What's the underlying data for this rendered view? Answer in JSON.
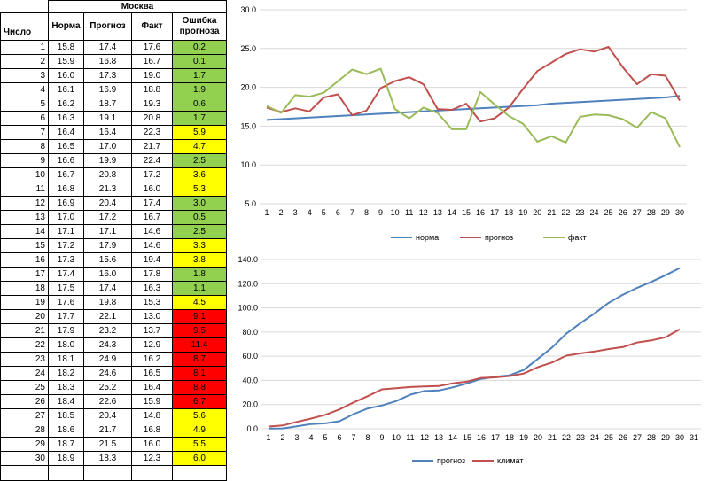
{
  "table": {
    "city": "Москва",
    "headers": {
      "day": "Число",
      "norm": "Норма",
      "forecast": "Прогноз",
      "fact": "Факт",
      "error": "Ошибка прогноза"
    },
    "colors": {
      "green": "#92d050",
      "yellow": "#ffff00",
      "red": "#ff0000"
    },
    "rows": [
      {
        "d": "1",
        "n": "15.8",
        "p": "17.4",
        "f": "17.6",
        "e": "0.2",
        "c": "green"
      },
      {
        "d": "2",
        "n": "15.9",
        "p": "16.8",
        "f": "16.7",
        "e": "0.1",
        "c": "green"
      },
      {
        "d": "3",
        "n": "16.0",
        "p": "17.3",
        "f": "19.0",
        "e": "1.7",
        "c": "green"
      },
      {
        "d": "4",
        "n": "16.1",
        "p": "16.9",
        "f": "18.8",
        "e": "1.9",
        "c": "green"
      },
      {
        "d": "5",
        "n": "16.2",
        "p": "18.7",
        "f": "19.3",
        "e": "0.6",
        "c": "green"
      },
      {
        "d": "6",
        "n": "16.3",
        "p": "19.1",
        "f": "20.8",
        "e": "1.7",
        "c": "green"
      },
      {
        "d": "7",
        "n": "16.4",
        "p": "16.4",
        "f": "22.3",
        "e": "5.9",
        "c": "yellow"
      },
      {
        "d": "8",
        "n": "16.5",
        "p": "17.0",
        "f": "21.7",
        "e": "4.7",
        "c": "yellow"
      },
      {
        "d": "9",
        "n": "16.6",
        "p": "19.9",
        "f": "22.4",
        "e": "2.5",
        "c": "green"
      },
      {
        "d": "10",
        "n": "16.7",
        "p": "20.8",
        "f": "17.2",
        "e": "3.6",
        "c": "yellow"
      },
      {
        "d": "11",
        "n": "16.8",
        "p": "21.3",
        "f": "16.0",
        "e": "5.3",
        "c": "yellow"
      },
      {
        "d": "12",
        "n": "16.9",
        "p": "20.4",
        "f": "17.4",
        "e": "3.0",
        "c": "green"
      },
      {
        "d": "13",
        "n": "17.0",
        "p": "17.2",
        "f": "16.7",
        "e": "0.5",
        "c": "green"
      },
      {
        "d": "14",
        "n": "17.1",
        "p": "17.1",
        "f": "14.6",
        "e": "2.5",
        "c": "green"
      },
      {
        "d": "15",
        "n": "17.2",
        "p": "17.9",
        "f": "14.6",
        "e": "3.3",
        "c": "yellow"
      },
      {
        "d": "16",
        "n": "17.3",
        "p": "15.6",
        "f": "19.4",
        "e": "3.8",
        "c": "yellow"
      },
      {
        "d": "17",
        "n": "17.4",
        "p": "16.0",
        "f": "17.8",
        "e": "1.8",
        "c": "green"
      },
      {
        "d": "18",
        "n": "17.5",
        "p": "17.4",
        "f": "16.3",
        "e": "1.1",
        "c": "green"
      },
      {
        "d": "19",
        "n": "17.6",
        "p": "19.8",
        "f": "15.3",
        "e": "4.5",
        "c": "yellow"
      },
      {
        "d": "20",
        "n": "17.7",
        "p": "22.1",
        "f": "13.0",
        "e": "9.1",
        "c": "red"
      },
      {
        "d": "21",
        "n": "17.9",
        "p": "23.2",
        "f": "13.7",
        "e": "9.5",
        "c": "red"
      },
      {
        "d": "22",
        "n": "18.0",
        "p": "24.3",
        "f": "12.9",
        "e": "11.4",
        "c": "red"
      },
      {
        "d": "23",
        "n": "18.1",
        "p": "24.9",
        "f": "16.2",
        "e": "8.7",
        "c": "red"
      },
      {
        "d": "24",
        "n": "18.2",
        "p": "24.6",
        "f": "16.5",
        "e": "8.1",
        "c": "red"
      },
      {
        "d": "25",
        "n": "18.3",
        "p": "25.2",
        "f": "16.4",
        "e": "8.8",
        "c": "red"
      },
      {
        "d": "26",
        "n": "18.4",
        "p": "22.6",
        "f": "15.9",
        "e": "6.7",
        "c": "red"
      },
      {
        "d": "27",
        "n": "18.5",
        "p": "20.4",
        "f": "14.8",
        "e": "5.6",
        "c": "yellow"
      },
      {
        "d": "28",
        "n": "18.6",
        "p": "21.7",
        "f": "16.8",
        "e": "4.9",
        "c": "yellow"
      },
      {
        "d": "29",
        "n": "18.7",
        "p": "21.5",
        "f": "16.0",
        "e": "5.5",
        "c": "yellow"
      },
      {
        "d": "30",
        "n": "18.9",
        "p": "18.3",
        "f": "12.3",
        "e": "6.0",
        "c": "yellow"
      }
    ]
  },
  "chart_data": [
    {
      "type": "line",
      "x": [
        1,
        2,
        3,
        4,
        5,
        6,
        7,
        8,
        9,
        10,
        11,
        12,
        13,
        14,
        15,
        16,
        17,
        18,
        19,
        20,
        21,
        22,
        23,
        24,
        25,
        26,
        27,
        28,
        29,
        30
      ],
      "ylim": [
        5.0,
        30.0
      ],
      "yticks": [
        "5.0",
        "10.0",
        "15.0",
        "20.0",
        "25.0",
        "30.0"
      ],
      "xticks": [
        "1",
        "2",
        "3",
        "4",
        "5",
        "6",
        "7",
        "8",
        "9",
        "10",
        "11",
        "12",
        "13",
        "14",
        "15",
        "16",
        "17",
        "18",
        "19",
        "20",
        "21",
        "22",
        "23",
        "24",
        "25",
        "26",
        "27",
        "28",
        "29",
        "30"
      ],
      "grid": true,
      "legend_position": "bottom",
      "series": [
        {
          "name": "норма",
          "color": "#4f81bd",
          "values": [
            15.8,
            15.9,
            16.0,
            16.1,
            16.2,
            16.3,
            16.4,
            16.5,
            16.6,
            16.7,
            16.8,
            16.9,
            17.0,
            17.1,
            17.2,
            17.3,
            17.4,
            17.5,
            17.6,
            17.7,
            17.9,
            18.0,
            18.1,
            18.2,
            18.3,
            18.4,
            18.5,
            18.6,
            18.7,
            18.9
          ]
        },
        {
          "name": "прогноз",
          "color": "#c0504d",
          "values": [
            17.4,
            16.8,
            17.3,
            16.9,
            18.7,
            19.1,
            16.4,
            17.0,
            19.9,
            20.8,
            21.3,
            20.4,
            17.2,
            17.1,
            17.9,
            15.6,
            16.0,
            17.4,
            19.8,
            22.1,
            23.2,
            24.3,
            24.9,
            24.6,
            25.2,
            22.6,
            20.4,
            21.7,
            21.5,
            18.3
          ]
        },
        {
          "name": "факт",
          "color": "#9bbb59",
          "values": [
            17.6,
            16.7,
            19.0,
            18.8,
            19.3,
            20.8,
            22.3,
            21.7,
            22.4,
            17.2,
            16.0,
            17.4,
            16.7,
            14.6,
            14.6,
            19.4,
            17.8,
            16.3,
            15.3,
            13.0,
            13.7,
            12.9,
            16.2,
            16.5,
            16.4,
            15.9,
            14.8,
            16.8,
            16.0,
            12.3
          ]
        }
      ]
    },
    {
      "type": "line",
      "x": [
        1,
        2,
        3,
        4,
        5,
        6,
        7,
        8,
        9,
        10,
        11,
        12,
        13,
        14,
        15,
        16,
        17,
        18,
        19,
        20,
        21,
        22,
        23,
        24,
        25,
        26,
        27,
        28,
        29,
        30
      ],
      "ylim": [
        0.0,
        140.0
      ],
      "yticks": [
        "0.0",
        "20.0",
        "40.0",
        "60.0",
        "80.0",
        "100.0",
        "120.0",
        "140.0"
      ],
      "xticks": [
        "1",
        "2",
        "3",
        "4",
        "5",
        "6",
        "7",
        "8",
        "9",
        "10",
        "11",
        "12",
        "13",
        "14",
        "15",
        "16",
        "17",
        "18",
        "19",
        "20",
        "21",
        "22",
        "23",
        "24",
        "25",
        "26",
        "27",
        "28",
        "29",
        "30",
        "31"
      ],
      "grid": true,
      "legend_position": "bottom",
      "series": [
        {
          "name": "прогноз",
          "color": "#4f81bd",
          "values": [
            0.2,
            0.3,
            2.0,
            3.9,
            4.5,
            6.2,
            12.1,
            16.8,
            19.3,
            22.9,
            28.2,
            31.2,
            31.7,
            34.2,
            37.5,
            41.3,
            43.1,
            44.2,
            48.7,
            57.8,
            67.3,
            78.7,
            87.4,
            95.5,
            104.3,
            111.0,
            116.6,
            121.5,
            127.0,
            133.0
          ]
        },
        {
          "name": "климат",
          "color": "#c0504d",
          "values": [
            1.8,
            2.7,
            5.7,
            8.4,
            11.5,
            16.0,
            21.8,
            27.0,
            32.6,
            33.5,
            34.5,
            35.0,
            35.3,
            37.6,
            39.1,
            42.1,
            42.5,
            43.6,
            45.7,
            51.0,
            54.8,
            60.5,
            62.4,
            63.9,
            66.0,
            67.6,
            71.4,
            73.1,
            75.7,
            82.3
          ]
        }
      ]
    }
  ]
}
